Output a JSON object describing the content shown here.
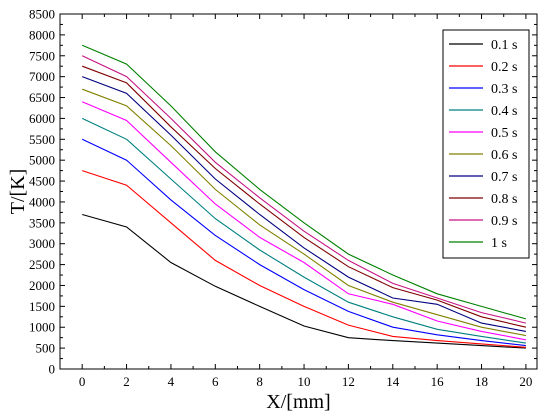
{
  "chart_data": {
    "type": "line",
    "title": "",
    "xlabel": "X/[mm]",
    "ylabel": "T/[K]",
    "xlim": [
      -1,
      20.5
    ],
    "ylim": [
      0,
      8500
    ],
    "x_ticks": [
      0,
      2,
      4,
      6,
      8,
      10,
      12,
      14,
      16,
      18,
      20
    ],
    "y_ticks": [
      0,
      500,
      1000,
      1500,
      2000,
      2500,
      3000,
      3500,
      4000,
      4500,
      5000,
      5500,
      6000,
      6500,
      7000,
      7500,
      8000,
      8500
    ],
    "grid": false,
    "legend_position": "top-right",
    "x": [
      0,
      2,
      4,
      6,
      8,
      10,
      12,
      14,
      16,
      18,
      20
    ],
    "series": [
      {
        "name": "0.1 s",
        "color": "#000000",
        "values": [
          3700,
          3400,
          2550,
          1980,
          1500,
          1030,
          750,
          680,
          620,
          560,
          500
        ]
      },
      {
        "name": "0.2 s",
        "color": "#ff0000",
        "values": [
          4750,
          4400,
          3500,
          2600,
          2000,
          1500,
          1050,
          780,
          680,
          600,
          520
        ]
      },
      {
        "name": "0.3 s",
        "color": "#0000ff",
        "values": [
          5500,
          5000,
          4050,
          3200,
          2500,
          1900,
          1380,
          1000,
          820,
          680,
          560
        ]
      },
      {
        "name": "0.4 s",
        "color": "#008080",
        "values": [
          6000,
          5500,
          4550,
          3600,
          2850,
          2200,
          1600,
          1250,
          950,
          780,
          620
        ]
      },
      {
        "name": "0.5 s",
        "color": "#ff00ff",
        "values": [
          6400,
          5950,
          4950,
          3950,
          3150,
          2550,
          1800,
          1550,
          1150,
          900,
          700
        ]
      },
      {
        "name": "0.6 s",
        "color": "#808000",
        "values": [
          6700,
          6300,
          5350,
          4300,
          3450,
          2750,
          2000,
          1600,
          1300,
          1000,
          800
        ]
      },
      {
        "name": "0.7 s",
        "color": "#000080",
        "values": [
          7000,
          6600,
          5600,
          4550,
          3700,
          2900,
          2200,
          1700,
          1550,
          1100,
          900
        ]
      },
      {
        "name": "0.8 s",
        "color": "#800000",
        "values": [
          7250,
          6850,
          5800,
          4800,
          3950,
          3150,
          2450,
          1950,
          1650,
          1250,
          1000
        ]
      },
      {
        "name": "0.9 s",
        "color": "#c71585",
        "values": [
          7500,
          7000,
          6000,
          4950,
          4100,
          3300,
          2600,
          2050,
          1700,
          1350,
          1100
        ]
      },
      {
        "name": "1 s",
        "color": "#008000",
        "values": [
          7750,
          7300,
          6300,
          5200,
          4300,
          3500,
          2750,
          2250,
          1800,
          1500,
          1200
        ]
      }
    ]
  }
}
